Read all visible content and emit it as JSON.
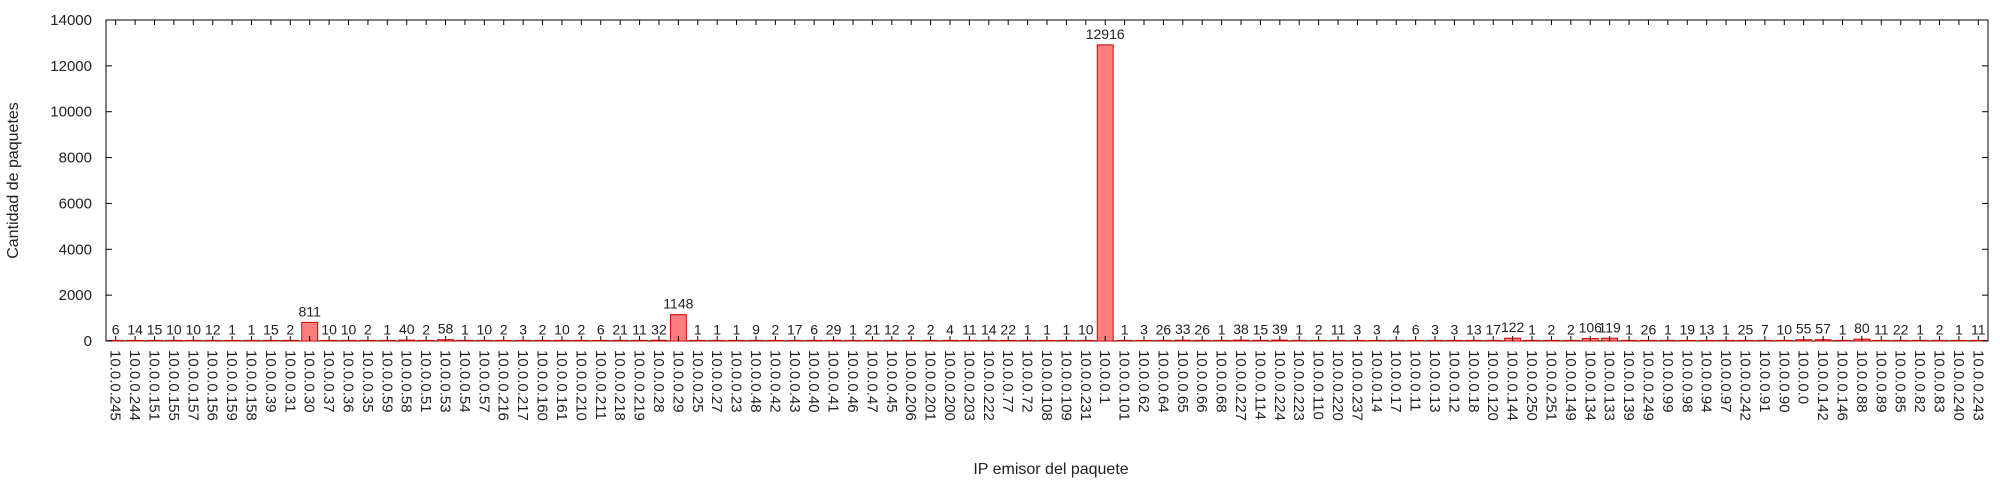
{
  "chart_data": {
    "type": "bar",
    "title": "",
    "xlabel": "IP emisor del paquete",
    "ylabel": "Cantidad de paquetes",
    "ylim": [
      0,
      14000
    ],
    "yticks": [
      0,
      2000,
      4000,
      6000,
      8000,
      10000,
      12000,
      14000
    ],
    "grid": false,
    "legend": "none",
    "bar_color": "#ff7f7f",
    "bar_edge_color": "#cc0000",
    "categories": [
      "10.0.0.245",
      "10.0.0.244",
      "10.0.0.151",
      "10.0.0.155",
      "10.0.0.157",
      "10.0.0.156",
      "10.0.0.159",
      "10.0.0.158",
      "10.0.0.39",
      "10.0.0.31",
      "10.0.0.30",
      "10.0.0.37",
      "10.0.0.36",
      "10.0.0.35",
      "10.0.0.59",
      "10.0.0.58",
      "10.0.0.51",
      "10.0.0.53",
      "10.0.0.54",
      "10.0.0.57",
      "10.0.0.216",
      "10.0.0.217",
      "10.0.0.160",
      "10.0.0.161",
      "10.0.0.210",
      "10.0.0.211",
      "10.0.0.218",
      "10.0.0.219",
      "10.0.0.28",
      "10.0.0.29",
      "10.0.0.25",
      "10.0.0.27",
      "10.0.0.23",
      "10.0.0.48",
      "10.0.0.42",
      "10.0.0.43",
      "10.0.0.40",
      "10.0.0.41",
      "10.0.0.46",
      "10.0.0.47",
      "10.0.0.45",
      "10.0.0.206",
      "10.0.0.201",
      "10.0.0.200",
      "10.0.0.203",
      "10.0.0.222",
      "10.0.0.77",
      "10.0.0.72",
      "10.0.0.108",
      "10.0.0.109",
      "10.0.0.231",
      "10.0.0.1",
      "10.0.0.101",
      "10.0.0.62",
      "10.0.0.64",
      "10.0.0.65",
      "10.0.0.66",
      "10.0.0.68",
      "10.0.0.227",
      "10.0.0.114",
      "10.0.0.224",
      "10.0.0.223",
      "10.0.0.110",
      "10.0.0.220",
      "10.0.0.237",
      "10.0.0.14",
      "10.0.0.17",
      "10.0.0.11",
      "10.0.0.13",
      "10.0.0.12",
      "10.0.0.18",
      "10.0.0.120",
      "10.0.0.144",
      "10.0.0.250",
      "10.0.0.251",
      "10.0.0.149",
      "10.0.0.134",
      "10.0.0.133",
      "10.0.0.139",
      "10.0.0.249",
      "10.0.0.99",
      "10.0.0.98",
      "10.0.0.94",
      "10.0.0.97",
      "10.0.0.242",
      "10.0.0.91",
      "10.0.0.90",
      "10.0.0.0",
      "10.0.0.142",
      "10.0.0.146",
      "10.0.0.88",
      "10.0.0.89",
      "10.0.0.85",
      "10.0.0.82",
      "10.0.0.83",
      "10.0.0.240",
      "10.0.0.243"
    ],
    "values": [
      6,
      14,
      15,
      10,
      10,
      12,
      1,
      1,
      15,
      2,
      811,
      10,
      10,
      2,
      1,
      40,
      2,
      58,
      1,
      10,
      2,
      3,
      2,
      10,
      2,
      6,
      21,
      11,
      32,
      1148,
      1,
      1,
      1,
      9,
      2,
      17,
      6,
      29,
      1,
      21,
      12,
      2,
      2,
      4,
      11,
      14,
      22,
      1,
      1,
      1,
      10,
      12916,
      1,
      3,
      26,
      33,
      26,
      1,
      38,
      15,
      39,
      1,
      2,
      11,
      3,
      3,
      4,
      6,
      3,
      3,
      13,
      17,
      122,
      1,
      2,
      2,
      106,
      119,
      1,
      26,
      1,
      19,
      13,
      1,
      25,
      7,
      10,
      55,
      57,
      1,
      80,
      11,
      22,
      1,
      2,
      1,
      11
    ]
  }
}
